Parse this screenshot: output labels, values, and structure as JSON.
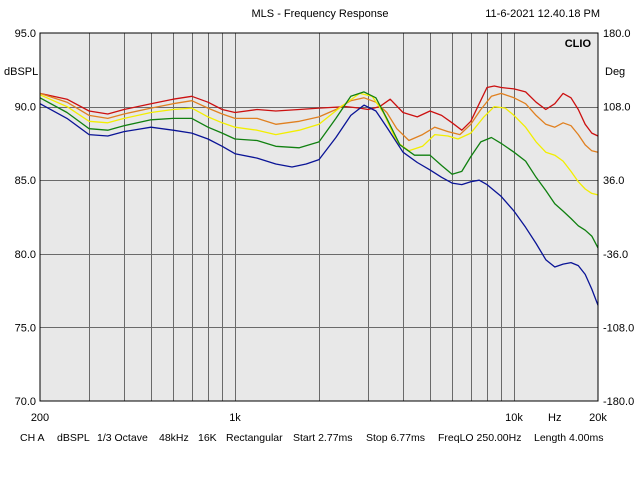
{
  "header": {
    "title": "MLS - Frequency Response",
    "timestamp": "11-6-2021 12.40.18 PM",
    "brand": "CLIO"
  },
  "footer": {
    "channel": "CH A",
    "unit": "dBSPL",
    "smoothing": "1/3 Octave",
    "sample_rate": "48kHz",
    "size": "16K",
    "window": "Rectangular",
    "start": "Start 2.77ms",
    "stop": "Stop 6.77ms",
    "freq_lo": "FreqLO 250.00Hz",
    "length": "Length 4.00ms"
  },
  "chart_data": {
    "type": "line",
    "title": "MLS - Frequency Response",
    "xlabel": "Hz",
    "ylabel": "dBSPL",
    "y2label": "Deg",
    "xscale": "log",
    "xlim": [
      200,
      20000
    ],
    "ylim": [
      70,
      95
    ],
    "y2lim": [
      -180,
      180
    ],
    "x_tick_labels": [
      {
        "value": 200,
        "label": "200"
      },
      {
        "value": 1000,
        "label": "1k"
      },
      {
        "value": 10000,
        "label": "10k"
      },
      {
        "value": 14000,
        "label": "Hz"
      },
      {
        "value": 20000,
        "label": "20k"
      }
    ],
    "y_tick_labels": [
      {
        "value": 95,
        "label": "95.0"
      },
      {
        "value": 90,
        "label": "90.0"
      },
      {
        "value": 85,
        "label": "85.0"
      },
      {
        "value": 80,
        "label": "80.0"
      },
      {
        "value": 75,
        "label": "75.0"
      },
      {
        "value": 70,
        "label": "70.0"
      }
    ],
    "y2_tick_labels": [
      {
        "value": 95,
        "label": "180.0"
      },
      {
        "value": 90,
        "label": "108.0"
      },
      {
        "value": 85,
        "label": "36.0"
      },
      {
        "value": 80,
        "label": "-36.0"
      },
      {
        "value": 75,
        "label": "-108.0"
      },
      {
        "value": 70,
        "label": "-180.0"
      }
    ],
    "grid": true,
    "background": "#e8e8e8",
    "series": [
      {
        "name": "red",
        "color": "#cc1010",
        "points": [
          [
            200,
            90.9
          ],
          [
            250,
            90.5
          ],
          [
            300,
            89.7
          ],
          [
            350,
            89.5
          ],
          [
            400,
            89.8
          ],
          [
            500,
            90.2
          ],
          [
            600,
            90.5
          ],
          [
            700,
            90.7
          ],
          [
            800,
            90.3
          ],
          [
            900,
            89.8
          ],
          [
            1000,
            89.6
          ],
          [
            1200,
            89.8
          ],
          [
            1400,
            89.7
          ],
          [
            1700,
            89.8
          ],
          [
            2000,
            89.9
          ],
          [
            2500,
            90.0
          ],
          [
            2800,
            89.9
          ],
          [
            3000,
            89.8
          ],
          [
            3300,
            90.0
          ],
          [
            3600,
            90.5
          ],
          [
            4000,
            89.6
          ],
          [
            4500,
            89.3
          ],
          [
            5000,
            89.7
          ],
          [
            5500,
            89.4
          ],
          [
            6000,
            88.9
          ],
          [
            6500,
            88.4
          ],
          [
            7000,
            89.0
          ],
          [
            7500,
            90.2
          ],
          [
            8000,
            91.3
          ],
          [
            8500,
            91.4
          ],
          [
            9000,
            91.3
          ],
          [
            10000,
            91.2
          ],
          [
            11000,
            91.0
          ],
          [
            12000,
            90.3
          ],
          [
            13000,
            89.8
          ],
          [
            14000,
            90.2
          ],
          [
            15000,
            90.9
          ],
          [
            16000,
            90.6
          ],
          [
            17000,
            89.8
          ],
          [
            18000,
            88.8
          ],
          [
            19000,
            88.2
          ],
          [
            20000,
            88.0
          ]
        ]
      },
      {
        "name": "orange",
        "color": "#e08020",
        "points": [
          [
            200,
            90.9
          ],
          [
            250,
            90.3
          ],
          [
            300,
            89.4
          ],
          [
            350,
            89.2
          ],
          [
            400,
            89.5
          ],
          [
            500,
            89.9
          ],
          [
            600,
            90.2
          ],
          [
            700,
            90.4
          ],
          [
            800,
            89.9
          ],
          [
            900,
            89.5
          ],
          [
            1000,
            89.2
          ],
          [
            1200,
            89.2
          ],
          [
            1400,
            88.8
          ],
          [
            1700,
            89.0
          ],
          [
            2000,
            89.3
          ],
          [
            2300,
            89.8
          ],
          [
            2600,
            90.4
          ],
          [
            2900,
            90.6
          ],
          [
            3200,
            90.3
          ],
          [
            3500,
            89.6
          ],
          [
            3800,
            88.5
          ],
          [
            4200,
            87.7
          ],
          [
            4700,
            88.1
          ],
          [
            5200,
            88.6
          ],
          [
            5800,
            88.3
          ],
          [
            6400,
            88.1
          ],
          [
            7000,
            88.8
          ],
          [
            7600,
            89.8
          ],
          [
            8300,
            90.7
          ],
          [
            9000,
            90.9
          ],
          [
            10000,
            90.6
          ],
          [
            11000,
            90.2
          ],
          [
            12000,
            89.4
          ],
          [
            13000,
            88.8
          ],
          [
            14000,
            88.6
          ],
          [
            15000,
            88.9
          ],
          [
            16000,
            88.7
          ],
          [
            17000,
            88.1
          ],
          [
            18000,
            87.4
          ],
          [
            19000,
            87.0
          ],
          [
            20000,
            86.9
          ]
        ]
      },
      {
        "name": "yellow",
        "color": "#f2ee00",
        "points": [
          [
            200,
            90.8
          ],
          [
            250,
            90.0
          ],
          [
            300,
            89.0
          ],
          [
            350,
            88.9
          ],
          [
            400,
            89.2
          ],
          [
            500,
            89.6
          ],
          [
            600,
            89.8
          ],
          [
            700,
            89.9
          ],
          [
            800,
            89.3
          ],
          [
            900,
            88.9
          ],
          [
            1000,
            88.6
          ],
          [
            1200,
            88.4
          ],
          [
            1400,
            88.1
          ],
          [
            1700,
            88.4
          ],
          [
            2000,
            88.8
          ],
          [
            2400,
            90.0
          ],
          [
            2800,
            90.9
          ],
          [
            3100,
            90.7
          ],
          [
            3400,
            89.6
          ],
          [
            3800,
            87.6
          ],
          [
            4200,
            87.0
          ],
          [
            4700,
            87.3
          ],
          [
            5200,
            88.1
          ],
          [
            5800,
            88.0
          ],
          [
            6300,
            87.8
          ],
          [
            7000,
            88.2
          ],
          [
            7800,
            89.3
          ],
          [
            8500,
            90.0
          ],
          [
            9300,
            89.9
          ],
          [
            10000,
            89.4
          ],
          [
            11000,
            88.6
          ],
          [
            12000,
            87.6
          ],
          [
            13000,
            86.9
          ],
          [
            14000,
            86.7
          ],
          [
            15000,
            86.3
          ],
          [
            16000,
            85.6
          ],
          [
            17000,
            84.9
          ],
          [
            18000,
            84.4
          ],
          [
            19000,
            84.1
          ],
          [
            20000,
            84.0
          ]
        ]
      },
      {
        "name": "green",
        "color": "#108010",
        "points": [
          [
            200,
            90.6
          ],
          [
            250,
            89.6
          ],
          [
            300,
            88.5
          ],
          [
            350,
            88.4
          ],
          [
            400,
            88.7
          ],
          [
            500,
            89.1
          ],
          [
            600,
            89.2
          ],
          [
            700,
            89.2
          ],
          [
            800,
            88.6
          ],
          [
            900,
            88.2
          ],
          [
            1000,
            87.8
          ],
          [
            1200,
            87.7
          ],
          [
            1400,
            87.3
          ],
          [
            1700,
            87.2
          ],
          [
            2000,
            87.6
          ],
          [
            2300,
            89.2
          ],
          [
            2600,
            90.7
          ],
          [
            2900,
            91.0
          ],
          [
            3200,
            90.6
          ],
          [
            3500,
            89.2
          ],
          [
            3900,
            87.4
          ],
          [
            4400,
            86.7
          ],
          [
            5000,
            86.7
          ],
          [
            5500,
            86.0
          ],
          [
            6000,
            85.4
          ],
          [
            6500,
            85.6
          ],
          [
            7000,
            86.6
          ],
          [
            7600,
            87.6
          ],
          [
            8300,
            87.9
          ],
          [
            9000,
            87.5
          ],
          [
            10000,
            86.9
          ],
          [
            11000,
            86.3
          ],
          [
            12000,
            85.2
          ],
          [
            13000,
            84.3
          ],
          [
            14000,
            83.4
          ],
          [
            15000,
            82.9
          ],
          [
            16000,
            82.4
          ],
          [
            17000,
            81.9
          ],
          [
            18000,
            81.6
          ],
          [
            19000,
            81.2
          ],
          [
            20000,
            80.4
          ]
        ]
      },
      {
        "name": "blue",
        "color": "#0a1496",
        "points": [
          [
            200,
            90.2
          ],
          [
            250,
            89.2
          ],
          [
            300,
            88.1
          ],
          [
            350,
            88.0
          ],
          [
            400,
            88.3
          ],
          [
            500,
            88.6
          ],
          [
            600,
            88.4
          ],
          [
            700,
            88.2
          ],
          [
            800,
            87.8
          ],
          [
            900,
            87.3
          ],
          [
            1000,
            86.8
          ],
          [
            1200,
            86.5
          ],
          [
            1400,
            86.1
          ],
          [
            1600,
            85.9
          ],
          [
            1800,
            86.1
          ],
          [
            2000,
            86.4
          ],
          [
            2300,
            87.9
          ],
          [
            2600,
            89.4
          ],
          [
            2900,
            90.1
          ],
          [
            3200,
            89.7
          ],
          [
            3500,
            88.6
          ],
          [
            4000,
            86.9
          ],
          [
            4500,
            86.2
          ],
          [
            5000,
            85.7
          ],
          [
            5500,
            85.2
          ],
          [
            6000,
            84.8
          ],
          [
            6500,
            84.7
          ],
          [
            7000,
            84.9
          ],
          [
            7500,
            85.0
          ],
          [
            8000,
            84.7
          ],
          [
            9000,
            83.9
          ],
          [
            10000,
            82.9
          ],
          [
            11000,
            81.8
          ],
          [
            12000,
            80.7
          ],
          [
            13000,
            79.6
          ],
          [
            14000,
            79.1
          ],
          [
            15000,
            79.3
          ],
          [
            16000,
            79.4
          ],
          [
            17000,
            79.2
          ],
          [
            18000,
            78.6
          ],
          [
            19000,
            77.6
          ],
          [
            20000,
            76.5
          ]
        ]
      }
    ]
  }
}
